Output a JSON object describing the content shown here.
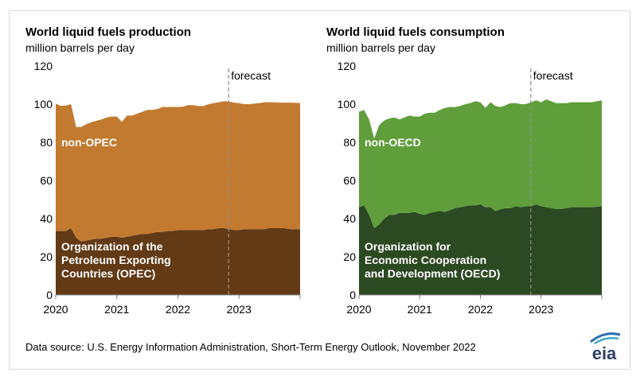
{
  "source": "Data source: U.S. Energy Information Administration, Short-Term Energy Outlook, November 2022",
  "logo_text": "eia",
  "colors": {
    "production_top": "#c27a30",
    "production_bottom": "#623a15",
    "consumption_top": "#5f9e3b",
    "consumption_bottom": "#2c4a22",
    "forecast_line": "#8c8c8c",
    "axis": "#7f7f7f",
    "logo_blue": "#2a6fb0",
    "logo_teal": "#39a9c6"
  },
  "chart_data": [
    {
      "type": "area",
      "stacked": true,
      "title": "World liquid fuels production",
      "subtitle": "million barrels per day",
      "ylim": [
        0,
        120
      ],
      "yticks": [
        "0",
        "20",
        "40",
        "60",
        "80",
        "100",
        "120"
      ],
      "xlim": [
        2020,
        2024
      ],
      "xticks": [
        "2020",
        "2021",
        "2022",
        "2023"
      ],
      "forecast_label": "forecast",
      "forecast_start": 2022.83,
      "x": [
        2020.0,
        2020.083,
        2020.167,
        2020.25,
        2020.333,
        2020.417,
        2020.5,
        2020.583,
        2020.667,
        2020.75,
        2020.833,
        2020.917,
        2021.0,
        2021.083,
        2021.167,
        2021.25,
        2021.333,
        2021.417,
        2021.5,
        2021.583,
        2021.667,
        2021.75,
        2021.833,
        2021.917,
        2022.0,
        2022.083,
        2022.167,
        2022.25,
        2022.333,
        2022.417,
        2022.5,
        2022.583,
        2022.667,
        2022.75,
        2022.833,
        2022.917,
        2023.0,
        2023.083,
        2023.167,
        2023.25,
        2023.333,
        2023.417,
        2023.5,
        2023.583,
        2023.667,
        2023.75,
        2023.833,
        2023.917
      ],
      "series": [
        {
          "name": "Organization of the Petroleum Exporting Countries (OPEC)",
          "label_lines": [
            "Organization of the",
            "Petroleum Exporting",
            "Countries (OPEC)"
          ],
          "values": [
            33.5,
            33.5,
            33.5,
            35.0,
            30.0,
            28.0,
            28.5,
            29.0,
            29.5,
            29.5,
            30.0,
            30.5,
            30.5,
            30.0,
            30.5,
            31.0,
            31.5,
            32.0,
            32.0,
            32.5,
            33.0,
            33.0,
            33.5,
            33.5,
            34.0,
            34.0,
            34.0,
            34.0,
            34.0,
            34.0,
            34.5,
            34.5,
            35.0,
            35.0,
            34.5,
            34.0,
            34.0,
            34.5,
            34.5,
            34.5,
            34.5,
            34.5,
            35.0,
            35.0,
            35.0,
            35.0,
            34.5,
            34.5
          ]
        },
        {
          "name": "non-OPEC",
          "label_lines": [
            "non-OPEC"
          ],
          "values": [
            66.8,
            65.6,
            65.8,
            65.0,
            58.0,
            60.0,
            61.0,
            61.5,
            61.8,
            62.5,
            63.0,
            63.0,
            63.0,
            60.7,
            63.5,
            63.0,
            63.5,
            64.0,
            65.0,
            64.5,
            64.5,
            65.5,
            65.0,
            65.0,
            64.5,
            64.7,
            65.5,
            65.5,
            65.0,
            65.0,
            65.5,
            66.0,
            66.0,
            66.5,
            66.9,
            66.8,
            66.5,
            65.5,
            65.5,
            65.8,
            66.0,
            66.5,
            66.0,
            66.0,
            65.8,
            65.8,
            66.3,
            66.1
          ]
        }
      ]
    },
    {
      "type": "area",
      "stacked": true,
      "title": "World liquid fuels consumption",
      "subtitle": "million barrels per day",
      "ylim": [
        0,
        120
      ],
      "yticks": [
        "0",
        "20",
        "40",
        "60",
        "80",
        "100",
        "120"
      ],
      "xlim": [
        2020,
        2024
      ],
      "xticks": [
        "2020",
        "2021",
        "2022",
        "2023"
      ],
      "forecast_label": "forecast",
      "forecast_start": 2022.83,
      "x": [
        2020.0,
        2020.083,
        2020.167,
        2020.25,
        2020.333,
        2020.417,
        2020.5,
        2020.583,
        2020.667,
        2020.75,
        2020.833,
        2020.917,
        2021.0,
        2021.083,
        2021.167,
        2021.25,
        2021.333,
        2021.417,
        2021.5,
        2021.583,
        2021.667,
        2021.75,
        2021.833,
        2021.917,
        2022.0,
        2022.083,
        2022.167,
        2022.25,
        2022.333,
        2022.417,
        2022.5,
        2022.583,
        2022.667,
        2022.75,
        2022.833,
        2022.917,
        2023.0,
        2023.083,
        2023.167,
        2023.25,
        2023.333,
        2023.417,
        2023.5,
        2023.583,
        2023.667,
        2023.75,
        2023.833,
        2023.917
      ],
      "series": [
        {
          "name": "Organization for Economic Cooperation and Development (OECD)",
          "label_lines": [
            "Organization for",
            "Economic Cooperation",
            "and Development (OECD)"
          ],
          "values": [
            46.0,
            47.0,
            42.0,
            35.0,
            37.0,
            40.0,
            42.0,
            42.0,
            43.0,
            43.0,
            43.0,
            43.5,
            42.5,
            42.0,
            43.0,
            43.5,
            44.0,
            43.5,
            44.5,
            45.5,
            46.0,
            46.5,
            47.0,
            47.0,
            47.5,
            46.0,
            46.0,
            44.0,
            45.0,
            45.5,
            45.5,
            46.5,
            46.0,
            46.5,
            46.5,
            47.5,
            46.5,
            46.0,
            45.5,
            45.0,
            45.0,
            45.5,
            46.0,
            46.0,
            46.0,
            46.0,
            46.0,
            46.5
          ]
        },
        {
          "name": "non-OECD",
          "label_lines": [
            "non-OECD"
          ],
          "values": [
            50.0,
            50.0,
            50.0,
            47.0,
            52.0,
            51.5,
            50.5,
            51.0,
            49.0,
            50.0,
            51.0,
            50.0,
            51.0,
            53.0,
            52.5,
            52.0,
            53.0,
            54.5,
            54.0,
            53.0,
            53.0,
            53.5,
            53.5,
            54.5,
            53.5,
            52.0,
            55.0,
            55.0,
            53.5,
            54.0,
            55.0,
            54.0,
            54.0,
            53.5,
            54.5,
            54.5,
            54.5,
            56.5,
            56.0,
            55.5,
            55.5,
            55.0,
            55.0,
            55.0,
            55.0,
            55.0,
            55.0,
            55.5
          ]
        }
      ]
    }
  ]
}
